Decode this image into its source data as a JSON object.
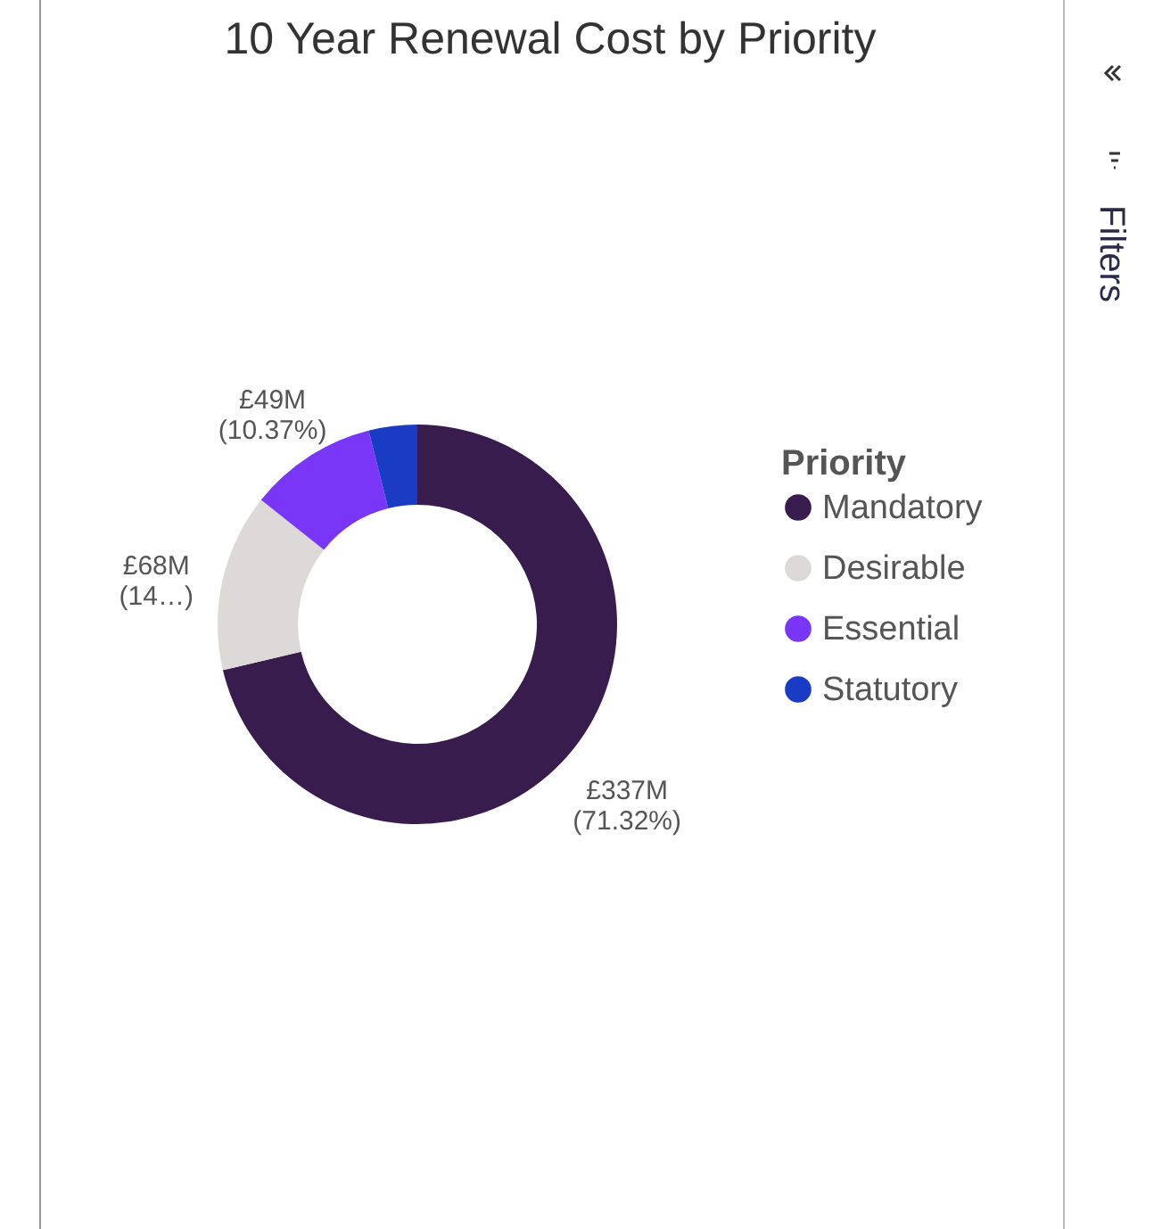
{
  "chart_data": {
    "type": "donut",
    "title": "10 Year Renewal Cost by Priority",
    "legend_title": "Priority",
    "legend": "right",
    "categories": [
      "Mandatory",
      "Desirable",
      "Essential",
      "Statutory"
    ],
    "values": [
      71.32,
      14.39,
      10.37,
      3.92
    ],
    "colors": [
      "#371c4d",
      "#dcd9d8",
      "#7a36f7",
      "#1a3cc4"
    ],
    "value_labels": [
      "£337M (71.32%)",
      "£68M (14…)",
      "£49M (10.37%)",
      null
    ],
    "annotations": [
      "Filters"
    ]
  }
}
